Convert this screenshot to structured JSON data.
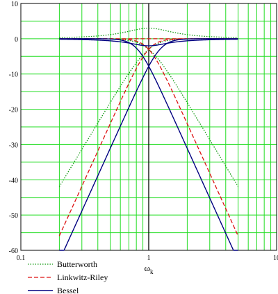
{
  "chart_data": {
    "type": "line",
    "xscale": "log",
    "xlim": [
      0.1,
      10
    ],
    "ylim": [
      -60,
      10
    ],
    "x_ticks": [
      0.1,
      1,
      10
    ],
    "x_tick_labels": [
      "0.1",
      "1",
      "10"
    ],
    "y_ticks": [
      10,
      0,
      -10,
      -20,
      -30,
      -40,
      -50,
      -60
    ],
    "y_tick_labels": [
      "10",
      "0",
      "-10",
      "-20",
      "-30",
      "-40",
      "-50",
      "-60"
    ],
    "xlabel": "ω",
    "xlabel_subscript": "k",
    "grid": true,
    "grid_color": "#22dd22",
    "legend_placement": "bottom-left",
    "x_range": [
      0.2,
      5
    ],
    "series": [
      {
        "name": "Butterworth",
        "style": "dotted",
        "color": "#119911",
        "curves": [
          {
            "kind": "highpass",
            "order": 3
          },
          {
            "kind": "lowpass",
            "order": 3
          },
          {
            "kind": "sum",
            "order": 3,
            "peak": 3
          }
        ]
      },
      {
        "name": "Linkwitz-Riley",
        "style": "dashed",
        "color": "#dd1111",
        "curves": [
          {
            "kind": "highpass",
            "order": 4
          },
          {
            "kind": "lowpass",
            "order": 4
          },
          {
            "kind": "flat",
            "value": 0
          }
        ]
      },
      {
        "name": "Bessel",
        "style": "solid",
        "color": "#000080",
        "curves": [
          {
            "kind": "highpass",
            "order": 4,
            "at_crossover": -7.8
          },
          {
            "kind": "lowpass",
            "order": 4,
            "at_crossover": -7.8
          },
          {
            "kind": "sum",
            "order": 4,
            "dip": -2
          }
        ]
      }
    ]
  }
}
